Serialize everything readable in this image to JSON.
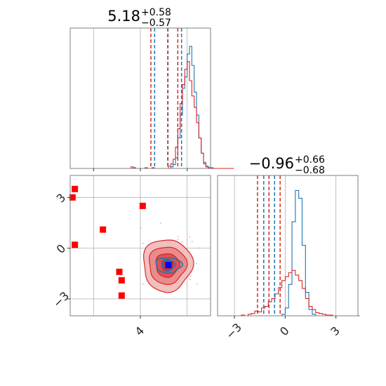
{
  "chart_data": [
    {
      "type": "histogram",
      "panel": "marginal-param-1",
      "title": {
        "value": "5.18",
        "upper": "+0.58",
        "lower": "−0.57"
      },
      "xlim": [
        1,
        7
      ],
      "grid_x": [
        2,
        4,
        6
      ],
      "series": [
        {
          "name": "",
          "color": "#1f77b4",
          "bin_start": 1.0,
          "bin_width": 0.1,
          "counts": [
            0,
            0,
            0,
            0,
            0,
            0,
            0,
            0,
            0,
            0,
            0,
            0,
            0,
            0,
            0,
            0,
            0,
            0,
            0,
            0,
            0,
            0,
            0,
            0,
            0,
            0,
            0,
            0,
            0,
            0,
            0,
            0,
            0,
            0,
            0,
            0,
            0,
            0,
            0,
            0,
            0,
            0,
            0,
            2,
            5,
            14,
            40,
            70,
            105,
            120,
            150,
            160,
            135,
            100,
            70,
            40,
            20,
            8,
            3,
            1,
            0,
            0,
            0,
            0,
            0,
            0,
            0,
            0,
            0,
            0
          ],
          "quantiles": [
            4.61,
            5.18,
            5.76
          ]
        },
        {
          "name": "",
          "color": "#d62728",
          "bin_start": 1.0,
          "bin_width": 0.1,
          "counts": [
            0,
            0,
            0,
            0,
            0,
            0,
            0,
            0,
            0,
            0,
            0,
            0,
            0,
            0,
            0,
            0,
            0,
            0,
            0,
            0,
            0,
            0,
            0,
            0,
            0,
            0,
            2,
            1,
            0,
            0,
            0,
            0,
            1,
            0,
            0,
            1,
            0,
            0,
            0,
            0,
            0,
            0,
            3,
            6,
            12,
            28,
            52,
            85,
            110,
            130,
            140,
            115,
            95,
            80,
            60,
            40,
            20,
            6,
            2,
            1,
            1,
            0,
            0,
            0,
            0,
            0,
            0,
            0,
            0,
            0
          ],
          "quantiles": [
            4.45,
            5.17,
            5.6
          ]
        }
      ]
    },
    {
      "type": "scatter",
      "panel": "joint-param-1-vs-param-2",
      "xlim": [
        1,
        7
      ],
      "ylim": [
        -4,
        4.3
      ],
      "x_ticks": [
        "4"
      ],
      "x_tick_values": [
        4
      ],
      "y_ticks": [
        "3",
        "0",
        "−3"
      ],
      "y_tick_values": [
        3,
        0,
        -3
      ],
      "grid_x": [
        2,
        4,
        6
      ],
      "grid_y": [
        3,
        0,
        -3
      ],
      "series": [
        {
          "name": "",
          "color": "#ff0000",
          "marker": "square",
          "points": [
            [
              1.2,
              3.5
            ],
            [
              1.1,
              3.0
            ],
            [
              1.2,
              0.2
            ],
            [
              2.4,
              1.1
            ],
            [
              3.1,
              -1.4
            ],
            [
              3.2,
              -1.9
            ],
            [
              3.2,
              -2.8
            ],
            [
              4.1,
              2.5
            ]
          ]
        },
        {
          "name": "",
          "color": "#0000ff",
          "marker": "square",
          "points": [
            [
              5.2,
              -1.0
            ]
          ]
        }
      ],
      "contours": [
        {
          "color": "#d62728",
          "center": [
            5.15,
            -1.0
          ],
          "levels_sigma": [
            [
              0.25,
              0.35
            ],
            [
              0.5,
              0.7
            ],
            [
              0.8,
              1.1
            ],
            [
              1.05,
              1.55
            ]
          ]
        },
        {
          "color": "#1f77b4",
          "center": [
            5.2,
            -1.0
          ],
          "levels_sigma": [
            [
              0.1,
              0.1
            ],
            [
              0.28,
              0.3
            ],
            [
              0.55,
              0.45
            ]
          ]
        }
      ]
    },
    {
      "type": "histogram",
      "panel": "marginal-param-2",
      "title": {
        "value": "−0.96",
        "upper": "+0.66",
        "lower": "−0.68"
      },
      "xlim": [
        -4,
        4.3
      ],
      "x_ticks": [
        "−3",
        "0",
        "3"
      ],
      "x_tick_values": [
        -3,
        0,
        3
      ],
      "grid_x": [
        -3,
        0,
        3
      ],
      "series": [
        {
          "name": "",
          "color": "#1f77b4",
          "bin_start": -4.0,
          "bin_width": 0.2,
          "counts": [
            0,
            0,
            0,
            0,
            0,
            0,
            0,
            0,
            0,
            0,
            0,
            0,
            0,
            0,
            0,
            0,
            0,
            0,
            0,
            2,
            10,
            40,
            120,
            160,
            150,
            90,
            30,
            8,
            2,
            0,
            0,
            0,
            0,
            0,
            0,
            0,
            0,
            0,
            0,
            0,
            0,
            0
          ],
          "quantiles": [
            -1.27,
            -0.96,
            -0.63
          ]
        },
        {
          "name": "",
          "color": "#d62728",
          "bin_start": -4.0,
          "bin_width": 0.2,
          "counts": [
            0,
            0,
            0,
            0,
            0,
            0,
            0,
            1,
            0,
            2,
            3,
            6,
            5,
            10,
            12,
            18,
            22,
            28,
            36,
            45,
            50,
            55,
            58,
            52,
            45,
            35,
            22,
            12,
            8,
            4,
            3,
            2,
            1,
            1,
            0,
            0,
            0,
            0,
            0,
            0,
            0,
            0
          ],
          "quantiles": [
            -1.64,
            -0.96,
            -0.3
          ]
        }
      ]
    }
  ]
}
